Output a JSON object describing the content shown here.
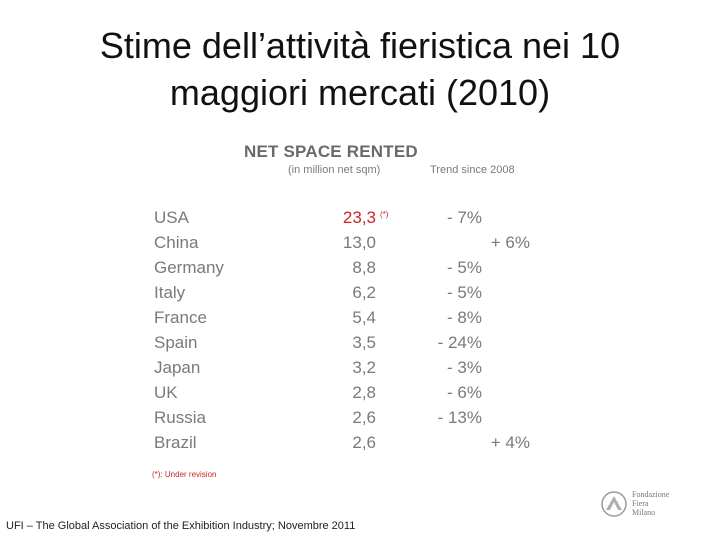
{
  "title": {
    "line1": "Stime dell’attività fieristica nei 10",
    "line2": "maggiori mercati (2010)"
  },
  "table": {
    "heading": "NET SPACE RENTED",
    "units_label": "(in million net sqm)",
    "trend_label": "Trend since 2008",
    "rows": [
      {
        "country": "USA",
        "value": "23,3",
        "star": "(*)",
        "trend": "- 7%",
        "trend_dir": "neg"
      },
      {
        "country": "China",
        "value": "13,0",
        "star": "",
        "trend": "+ 6%",
        "trend_dir": "pos"
      },
      {
        "country": "Germany",
        "value": "8,8",
        "star": "",
        "trend": "- 5%",
        "trend_dir": "neg"
      },
      {
        "country": "Italy",
        "value": "6,2",
        "star": "",
        "trend": "- 5%",
        "trend_dir": "neg"
      },
      {
        "country": "France",
        "value": "5,4",
        "star": "",
        "trend": "- 8%",
        "trend_dir": "neg"
      },
      {
        "country": "Spain",
        "value": "3,5",
        "star": "",
        "trend": "- 24%",
        "trend_dir": "neg"
      },
      {
        "country": "Japan",
        "value": "3,2",
        "star": "",
        "trend": "- 3%",
        "trend_dir": "neg"
      },
      {
        "country": "UK",
        "value": "2,8",
        "star": "",
        "trend": "- 6%",
        "trend_dir": "neg"
      },
      {
        "country": "Russia",
        "value": "2,6",
        "star": "",
        "trend": "- 13%",
        "trend_dir": "neg"
      },
      {
        "country": "Brazil",
        "value": "2,6",
        "star": "",
        "trend": "+ 4%",
        "trend_dir": "pos"
      }
    ],
    "footnote": "(*): Under revision"
  },
  "source": "UFI – The Global Association of the Exhibition Industry; Novembre 2011",
  "logo": {
    "line1": "Fondazione",
    "line2": "Fiera",
    "line3": "Milano",
    "icon": "fiera-milano-logo-icon"
  },
  "colors": {
    "highlight": "#c62828",
    "text_gray": "#7a7a7a",
    "title": "#111111"
  }
}
